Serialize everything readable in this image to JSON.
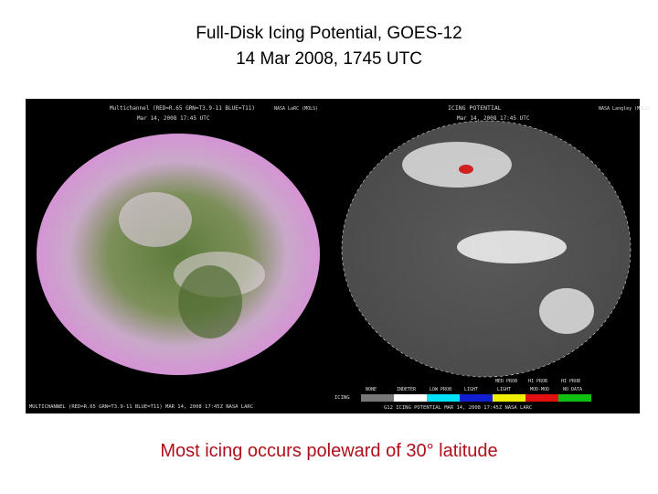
{
  "slide": {
    "title_lines": [
      "Full-Disk Icing Potential, GOES-12",
      "14 Mar 2008, 1745 UTC"
    ],
    "caption": "Most icing occurs poleward of 30° latitude"
  },
  "left_image": {
    "header": "Multichannel (RED=R.65 GRN=T3.9-11 BLUE=T11)",
    "date": "Mar 14, 2008 17:45 UTC",
    "credit": "NASA LaRC (MOLS)",
    "footer": "MULTICHANNEL (RED=R.65 GRN=T3.9-11 BLUE=T11) MAR 14, 2008 17:45Z NASA LARC"
  },
  "right_image": {
    "header": "ICING POTENTIAL",
    "date": "Mar 14, 2008 17:45 UTC",
    "credit": "NASA Langley (MOLS)",
    "legend_title": "ICING",
    "legend_top": [
      "MED PROB",
      "HI PROB",
      "HI PROB"
    ],
    "legend_bottom": [
      "NONE",
      "INDETER",
      "LOW PROB",
      "LIGHT",
      "LIGHT",
      "MOD-MOD",
      "NO DATA"
    ],
    "footer": "G12 ICING POTENTIAL MAR 14, 2008 17:45Z NASA LARC"
  }
}
